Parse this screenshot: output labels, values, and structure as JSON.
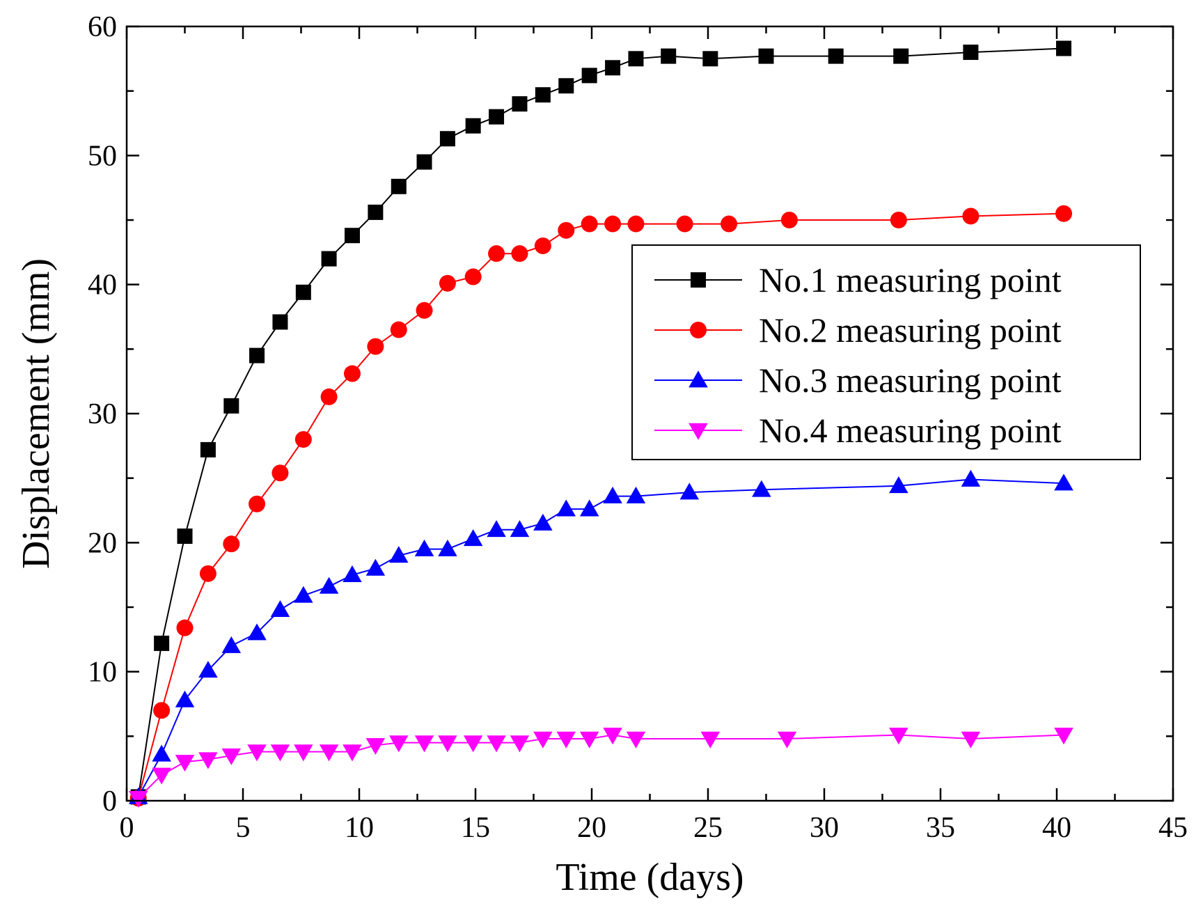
{
  "chart_data": {
    "type": "line",
    "title": "",
    "xlabel": "Time (days)",
    "ylabel": "Displacement (mm)",
    "xlim": [
      0,
      45
    ],
    "ylim": [
      0,
      60
    ],
    "xticks": [
      0,
      5,
      10,
      15,
      20,
      25,
      30,
      35,
      40,
      45
    ],
    "yticks": [
      0,
      10,
      20,
      30,
      40,
      50,
      60
    ],
    "grid": false,
    "legend_position": "center-right",
    "series": [
      {
        "name": "No.1 measuring point",
        "color": "#000000",
        "marker": "square",
        "x": [
          0.5,
          1.5,
          2.5,
          3.5,
          4.5,
          5.6,
          6.6,
          7.6,
          8.7,
          9.7,
          10.7,
          11.7,
          12.8,
          13.8,
          14.9,
          15.9,
          16.9,
          17.9,
          18.9,
          19.9,
          20.9,
          21.9,
          23.3,
          25.1,
          27.5,
          30.5,
          33.3,
          36.3,
          40.3
        ],
        "y": [
          0.3,
          12.2,
          20.5,
          27.2,
          30.6,
          34.5,
          37.1,
          39.4,
          42.0,
          43.8,
          45.6,
          47.6,
          49.5,
          51.3,
          52.3,
          53.0,
          54.0,
          54.7,
          55.4,
          56.2,
          56.8,
          57.5,
          57.7,
          57.5,
          57.7,
          57.7,
          57.7,
          58.0,
          58.3
        ]
      },
      {
        "name": "No.2 measuring point",
        "color": "#ff0000",
        "marker": "circle",
        "x": [
          0.5,
          1.5,
          2.5,
          3.5,
          4.5,
          5.6,
          6.6,
          7.6,
          8.7,
          9.7,
          10.7,
          11.7,
          12.8,
          13.8,
          14.9,
          15.9,
          16.9,
          17.9,
          18.9,
          19.9,
          20.9,
          21.9,
          24.0,
          25.9,
          28.5,
          33.2,
          36.3,
          40.3
        ],
        "y": [
          0.2,
          7.0,
          13.4,
          17.6,
          19.9,
          23.0,
          25.4,
          28.0,
          31.3,
          33.1,
          35.2,
          36.5,
          38.0,
          40.1,
          40.6,
          42.4,
          42.4,
          43.0,
          44.2,
          44.7,
          44.7,
          44.7,
          44.7,
          44.7,
          45.0,
          45.0,
          45.3,
          45.5
        ]
      },
      {
        "name": "No.3 measuring point",
        "color": "#0000ff",
        "marker": "triangle-up",
        "x": [
          0.5,
          1.5,
          2.5,
          3.5,
          4.5,
          5.6,
          6.6,
          7.6,
          8.7,
          9.7,
          10.7,
          11.7,
          12.8,
          13.8,
          14.9,
          15.9,
          16.9,
          17.9,
          18.9,
          19.9,
          20.9,
          21.9,
          24.2,
          27.3,
          33.2,
          36.3,
          40.3
        ],
        "y": [
          0.3,
          3.6,
          7.8,
          10.1,
          12.0,
          13.0,
          14.8,
          15.9,
          16.6,
          17.5,
          18.0,
          19.0,
          19.5,
          19.5,
          20.3,
          21.0,
          21.0,
          21.5,
          22.6,
          22.6,
          23.6,
          23.6,
          23.9,
          24.1,
          24.4,
          24.9,
          24.6
        ]
      },
      {
        "name": "No.4 measuring point",
        "color": "#ff00ff",
        "marker": "triangle-down",
        "x": [
          0.5,
          1.5,
          2.5,
          3.5,
          4.5,
          5.6,
          6.6,
          7.6,
          8.7,
          9.7,
          10.7,
          11.7,
          12.8,
          13.8,
          14.9,
          15.9,
          16.9,
          17.9,
          18.9,
          19.9,
          20.9,
          21.9,
          25.1,
          28.4,
          33.2,
          36.3,
          40.3
        ],
        "y": [
          0.2,
          2.0,
          3.0,
          3.2,
          3.5,
          3.8,
          3.8,
          3.8,
          3.8,
          3.8,
          4.3,
          4.5,
          4.5,
          4.5,
          4.5,
          4.5,
          4.5,
          4.8,
          4.8,
          4.8,
          5.1,
          4.8,
          4.8,
          4.8,
          5.1,
          4.8,
          5.1
        ]
      }
    ]
  }
}
